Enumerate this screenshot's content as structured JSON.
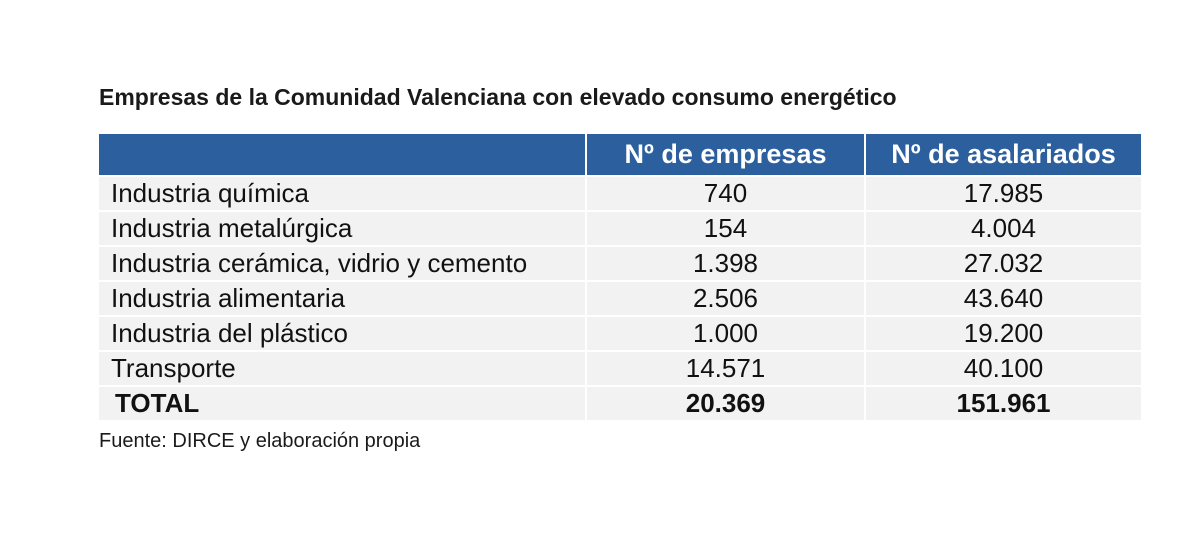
{
  "title": "Empresas de la Comunidad Valenciana con elevado consumo energético",
  "table": {
    "headers": [
      "",
      "Nº de empresas",
      "Nº de asalariados"
    ],
    "rows": [
      {
        "sector": "Industria química",
        "empresas": "740",
        "asalariados": "17.985"
      },
      {
        "sector": "Industria metalúrgica",
        "empresas": "154",
        "asalariados": "4.004"
      },
      {
        "sector": "Industria cerámica, vidrio y cemento",
        "empresas": "1.398",
        "asalariados": "27.032"
      },
      {
        "sector": "Industria alimentaria",
        "empresas": "2.506",
        "asalariados": "43.640"
      },
      {
        "sector": "Industria del plástico",
        "empresas": "1.000",
        "asalariados": "19.200"
      },
      {
        "sector": "Transporte",
        "empresas": "14.571",
        "asalariados": "40.100"
      }
    ],
    "total": {
      "sector": "TOTAL",
      "empresas": "20.369",
      "asalariados": "151.961"
    }
  },
  "source": "Fuente: DIRCE y elaboración propia",
  "colors": {
    "header_bg": "#2c5f9e",
    "header_text": "#ffffff",
    "row_bg": "#f2f2f2"
  }
}
